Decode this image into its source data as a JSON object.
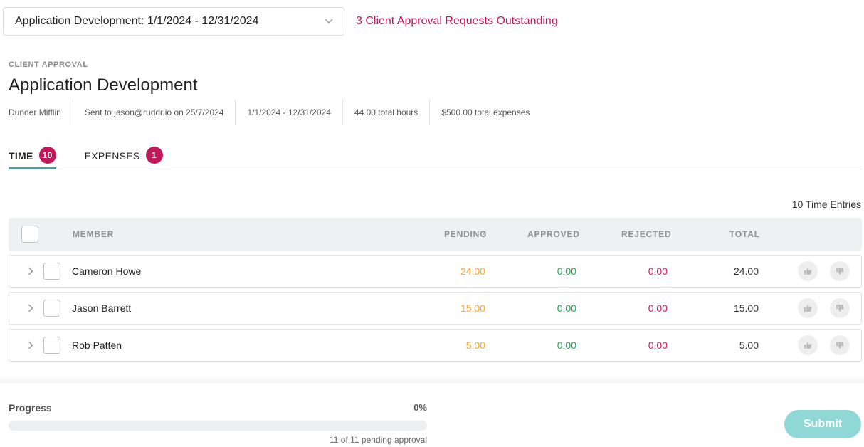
{
  "header": {
    "project_select_value": "Application Development: 1/1/2024 - 12/31/2024",
    "outstanding_text": "3 Client Approval Requests Outstanding"
  },
  "approval": {
    "eyebrow": "CLIENT APPROVAL",
    "title": "Application Development",
    "meta": {
      "client": "Dunder Mifflin",
      "sent": "Sent to jason@ruddr.io on 25/7/2024",
      "range": "1/1/2024 - 12/31/2024",
      "hours": "44.00 total hours",
      "expenses": "$500.00 total expenses"
    }
  },
  "tabs": [
    {
      "label": "TIME",
      "count": "10",
      "active": true
    },
    {
      "label": "EXPENSES",
      "count": "1",
      "active": false
    }
  ],
  "table": {
    "entries_count": "10 Time Entries",
    "columns": {
      "member": "MEMBER",
      "pending": "PENDING",
      "approved": "APPROVED",
      "rejected": "REJECTED",
      "total": "TOTAL"
    },
    "rows": [
      {
        "member": "Cameron Howe",
        "pending": "24.00",
        "approved": "0.00",
        "rejected": "0.00",
        "total": "24.00"
      },
      {
        "member": "Jason Barrett",
        "pending": "15.00",
        "approved": "0.00",
        "rejected": "0.00",
        "total": "15.00"
      },
      {
        "member": "Rob Patten",
        "pending": "5.00",
        "approved": "0.00",
        "rejected": "0.00",
        "total": "5.00"
      }
    ]
  },
  "footer": {
    "progress_label": "Progress",
    "progress_percent": "0%",
    "progress_value": 0,
    "progress_sub": "11 of 11 pending approval",
    "submit_label": "Submit"
  },
  "colors": {
    "accent": "#3aa9a5",
    "brand_pink": "#c2185b",
    "pending": "#f5a623",
    "approved": "#1aa24a"
  },
  "icons": {
    "select_chevron": "chevron-down-icon",
    "row_expand": "chevron-right-icon",
    "approve": "thumbs-up-icon",
    "reject": "thumbs-down-icon"
  }
}
